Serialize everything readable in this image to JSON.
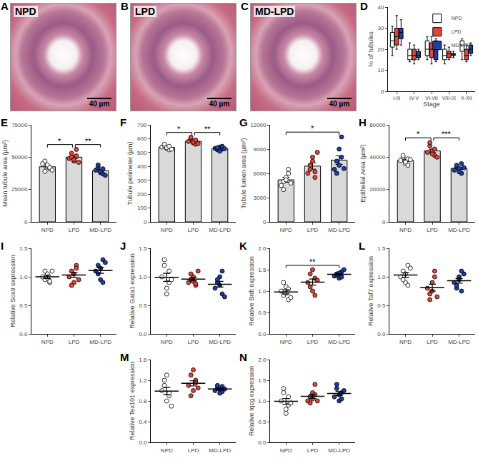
{
  "chart_data": [
    {
      "type": "image",
      "panel": "A",
      "label": "NPD",
      "scale_bar": "40 µm"
    },
    {
      "type": "image",
      "panel": "B",
      "label": "LPD",
      "scale_bar": "40 µm"
    },
    {
      "type": "image",
      "panel": "C",
      "label": "MD-LPD",
      "scale_bar": "40 µm"
    },
    {
      "type": "box",
      "panel": "D",
      "x_label": "Stage",
      "y_label": "% of tubules",
      "categories": [
        "I-III",
        "IV-V",
        "VI-VII",
        "VIII-IX",
        "X-XII"
      ],
      "ylim": [
        0,
        40
      ],
      "yticks": [
        0,
        10,
        20,
        30,
        40
      ],
      "legend": "top right",
      "series": [
        {
          "name": "NPD",
          "color": "#ffffff",
          "min": [
            17,
            14,
            15,
            13,
            15
          ],
          "q1": [
            21,
            15,
            17,
            15,
            19
          ],
          "median": [
            24,
            17,
            20,
            17,
            22
          ],
          "q3": [
            28,
            20,
            24,
            20,
            24
          ],
          "max": [
            31,
            23,
            26,
            22,
            25
          ]
        },
        {
          "name": "LPD",
          "color": "#e0453a",
          "min": [
            20,
            13,
            13,
            15,
            14
          ],
          "q1": [
            22,
            15,
            16,
            16,
            15
          ],
          "median": [
            26,
            17,
            20,
            18,
            17
          ],
          "q3": [
            30,
            20,
            23,
            19,
            20
          ],
          "max": [
            36,
            22,
            26,
            21,
            22
          ]
        },
        {
          "name": "MD-LPD",
          "color": "#1f3f9e",
          "min": [
            22,
            15,
            14,
            16,
            17
          ],
          "q1": [
            25,
            16,
            15,
            17,
            18
          ],
          "median": [
            28,
            17,
            20,
            17,
            20
          ],
          "q3": [
            30,
            19,
            24,
            18,
            22
          ],
          "max": [
            34,
            20,
            25,
            19,
            23
          ]
        }
      ]
    },
    {
      "type": "bar",
      "panel": "E",
      "y_label": "Mean tubule area (µm²)",
      "categories": [
        "NPD",
        "LPD",
        "MD-LPD"
      ],
      "color": "#d9d9d9",
      "colors": [
        "#ffffff",
        "#e0453a",
        "#1f3f9e"
      ],
      "ylim": [
        0,
        75000
      ],
      "yticks": [
        0,
        25000,
        50000,
        75000
      ],
      "values": [
        42600,
        50000,
        39600
      ],
      "error": [
        1000,
        1200,
        900
      ],
      "points": [
        [
          45000,
          47000,
          43000,
          41000,
          39000,
          44000,
          42000,
          40000
        ],
        [
          49000,
          53000,
          47000,
          56000,
          50000,
          48000,
          51000,
          46000
        ],
        [
          40000,
          42000,
          38000,
          37000,
          44000,
          39000,
          41000,
          36000
        ]
      ],
      "significance": [
        {
          "from": "NPD",
          "to": "LPD",
          "label": "*"
        },
        {
          "from": "LPD",
          "to": "MD-LPD",
          "label": "**"
        }
      ]
    },
    {
      "type": "bar",
      "panel": "F",
      "y_label": "Tubule perimeter (µm)",
      "categories": [
        "NPD",
        "LPD",
        "MD-LPD"
      ],
      "color": "#d9d9d9",
      "colors": [
        "#ffffff",
        "#e0453a",
        "#1f3f9e"
      ],
      "ylim": [
        0,
        700
      ],
      "yticks": [
        0,
        100,
        200,
        300,
        400,
        500,
        600,
        700
      ],
      "values": [
        538,
        581,
        529
      ],
      "error": [
        5,
        6,
        4
      ],
      "points": [
        [
          540,
          550,
          530,
          520,
          560,
          535,
          545,
          525
        ],
        [
          580,
          600,
          570,
          560,
          610,
          575,
          590,
          565
        ],
        [
          530,
          520,
          540,
          525,
          535,
          510,
          545,
          528
        ]
      ],
      "significance": [
        {
          "from": "NPD",
          "to": "LPD",
          "label": "*"
        },
        {
          "from": "LPD",
          "to": "MD-LPD",
          "label": "**"
        }
      ]
    },
    {
      "type": "bar",
      "panel": "G",
      "y_label": "Tubule lumen area (µm²)",
      "categories": [
        "NPD",
        "LPD",
        "MD-LPD"
      ],
      "color": "#d9d9d9",
      "colors": [
        "#ffffff",
        "#e0453a",
        "#1f3f9e"
      ],
      "ylim": [
        0,
        12000
      ],
      "yticks": [
        0,
        3000,
        6000,
        9000,
        12000
      ],
      "values": [
        5200,
        6900,
        7640
      ],
      "error": [
        300,
        380,
        540
      ],
      "points": [
        [
          4500,
          5000,
          5500,
          6000,
          4000,
          5200,
          6500,
          4800
        ],
        [
          6000,
          7000,
          8000,
          5500,
          6500,
          7500,
          6200,
          8600
        ],
        [
          6500,
          7500,
          9000,
          10500,
          6000,
          7000,
          8000,
          6600
        ]
      ],
      "significance": [
        {
          "from": "NPD",
          "to": "MD-LPD",
          "label": "*"
        }
      ]
    },
    {
      "type": "bar",
      "panel": "H",
      "y_label": "Epithelial Area (µm²)",
      "categories": [
        "NPD",
        "LPD",
        "MD-LPD"
      ],
      "color": "#d9d9d9",
      "colors": [
        "#ffffff",
        "#e0453a",
        "#1f3f9e"
      ],
      "ylim": [
        0,
        60000
      ],
      "yticks": [
        0,
        20000,
        40000,
        60000
      ],
      "values": [
        38060,
        43900,
        33060
      ],
      "error": [
        700,
        1000,
        700
      ],
      "points": [
        [
          38000,
          40000,
          36000,
          35000,
          41000,
          37000,
          39000,
          38500
        ],
        [
          43000,
          47000,
          44000,
          41000,
          49000,
          42000,
          45000,
          40000
        ],
        [
          32000,
          34000,
          33000,
          30000,
          35000,
          31000,
          36000,
          33500
        ]
      ],
      "significance": [
        {
          "from": "NPD",
          "to": "LPD",
          "label": "*"
        },
        {
          "from": "LPD",
          "to": "MD-LPD",
          "label": "***"
        }
      ]
    },
    {
      "type": "dot",
      "panel": "I",
      "y_label": "Relative Sox9 expression",
      "categories": [
        "NPD",
        "LPD",
        "MD-LPD"
      ],
      "colors": [
        "#ffffff",
        "#e0453a",
        "#1f3f9e"
      ],
      "ylim": [
        0,
        1.5
      ],
      "yticks": [
        {
          "value": 0,
          "label": "0.0"
        },
        {
          "value": 0.5,
          "label": "0.5"
        },
        {
          "value": 1,
          "label": "1.0"
        },
        {
          "value": 1.5,
          "label": "1.5"
        }
      ],
      "values": [
        1.0,
        1.03,
        1.11
      ],
      "error": [
        0.03,
        0.04,
        0.05
      ],
      "points": [
        [
          1.0,
          0.95,
          1.05,
          0.9,
          1.1,
          0.98,
          0.92,
          1.1
        ],
        [
          1.0,
          1.1,
          0.9,
          1.2,
          0.85,
          1.05,
          1.15,
          0.95
        ],
        [
          1.1,
          1.2,
          0.95,
          1.3,
          1.05,
          1.15,
          0.9,
          1.25
        ]
      ],
      "significance": []
    },
    {
      "type": "dot",
      "panel": "J",
      "y_label": "Relative Gata1 expression",
      "categories": [
        "NPD",
        "LPD",
        "MD-LPD"
      ],
      "colors": [
        "#ffffff",
        "#e0453a",
        "#1f3f9e"
      ],
      "ylim": [
        0,
        1.5
      ],
      "yticks": [
        {
          "value": 0,
          "label": "0.0"
        },
        {
          "value": 0.5,
          "label": "0.5"
        },
        {
          "value": 1,
          "label": "1.0"
        },
        {
          "value": 1.5,
          "label": "1.5"
        }
      ],
      "values": [
        0.99,
        0.96,
        0.87
      ],
      "error": [
        0.07,
        0.03,
        0.05
      ],
      "points": [
        [
          1.0,
          1.2,
          0.8,
          0.9,
          1.3,
          0.7,
          1.1,
          0.95
        ],
        [
          0.9,
          0.95,
          1.0,
          0.85,
          1.05,
          0.92,
          0.88,
          1.1
        ],
        [
          0.8,
          0.9,
          1.0,
          0.7,
          0.95,
          0.85,
          1.1,
          0.65
        ]
      ],
      "significance": []
    },
    {
      "type": "dot",
      "panel": "K",
      "y_label": "Relative Brdt expression",
      "categories": [
        "NPD",
        "LPD",
        "MD-LPD"
      ],
      "colors": [
        "#ffffff",
        "#e0453a",
        "#1f3f9e"
      ],
      "ylim": [
        0,
        2
      ],
      "yticks": [
        {
          "value": 0,
          "label": "0.0"
        },
        {
          "value": 0.5,
          "label": "0.5"
        },
        {
          "value": 1,
          "label": "1.0"
        },
        {
          "value": 1.5,
          "label": "1.5"
        },
        {
          "value": 2,
          "label": "2.0"
        }
      ],
      "values": [
        0.98,
        1.21,
        1.39
      ],
      "error": [
        0.05,
        0.07,
        0.02
      ],
      "points": [
        [
          1.0,
          0.9,
          1.1,
          0.8,
          1.2,
          0.95,
          1.05,
          0.85
        ],
        [
          1.2,
          1.4,
          1.0,
          1.3,
          1.1,
          1.5,
          0.9,
          1.25
        ],
        [
          1.35,
          1.4,
          1.3,
          1.45,
          1.38,
          1.42,
          1.33,
          1.5
        ]
      ],
      "significance": [
        {
          "from": "NPD",
          "to": "MD-LPD",
          "label": "**"
        }
      ]
    },
    {
      "type": "dot",
      "panel": "L",
      "y_label": "Relative Taf7 expression",
      "categories": [
        "NPD",
        "LPD",
        "MD-LPD"
      ],
      "colors": [
        "#ffffff",
        "#e0453a",
        "#1f3f9e"
      ],
      "ylim": [
        0,
        1.5
      ],
      "yticks": [
        {
          "value": 0,
          "label": "0.0"
        },
        {
          "value": 0.5,
          "label": "0.5"
        },
        {
          "value": 1,
          "label": "1.0"
        },
        {
          "value": 1.5,
          "label": "1.5"
        }
      ],
      "values": [
        1.03,
        0.81,
        0.93
      ],
      "error": [
        0.04,
        0.06,
        0.04
      ],
      "points": [
        [
          1.0,
          1.1,
          0.9,
          1.2,
          0.95,
          1.05,
          0.85,
          1.15
        ],
        [
          0.8,
          0.7,
          0.9,
          1.1,
          0.6,
          0.75,
          1.0,
          0.65
        ],
        [
          0.9,
          0.8,
          1.0,
          1.1,
          0.85,
          0.95,
          0.75,
          1.05
        ]
      ],
      "significance": []
    },
    {
      "type": "dot",
      "panel": "M",
      "y_label": "Relative Tex101 expression",
      "categories": [
        "NPD",
        "LPD",
        "MD-LPD"
      ],
      "colors": [
        "#ffffff",
        "#e0453a",
        "#1f3f9e"
      ],
      "ylim": [
        0,
        1.6
      ],
      "yticks": [
        {
          "value": 0,
          "label": "0.0"
        },
        {
          "value": 0.4,
          "label": "0.4"
        },
        {
          "value": 0.8,
          "label": "0.8"
        },
        {
          "value": 1.2,
          "label": "1.2"
        },
        {
          "value": 1.6,
          "label": "1.6"
        }
      ],
      "values": [
        0.99,
        1.14,
        1.03
      ],
      "error": [
        0.07,
        0.05,
        0.02
      ],
      "points": [
        [
          1.0,
          1.2,
          0.8,
          0.9,
          1.1,
          1.3,
          0.95,
          0.7
        ],
        [
          1.1,
          1.3,
          1.0,
          1.2,
          0.9,
          1.4,
          1.15,
          1.05
        ],
        [
          1.0,
          1.05,
          1.02,
          0.98,
          1.1,
          0.95,
          1.08,
          1.03
        ]
      ],
      "significance": []
    },
    {
      "type": "dot",
      "panel": "N",
      "y_label": "Relative Iqcg expression",
      "categories": [
        "NPD",
        "LPD",
        "MD-LPD"
      ],
      "colors": [
        "#ffffff",
        "#e0453a",
        "#1f3f9e"
      ],
      "ylim": [
        0,
        2
      ],
      "yticks": [
        {
          "value": 0,
          "label": "0.0"
        },
        {
          "value": 0.5,
          "label": "0.5"
        },
        {
          "value": 1,
          "label": "1.0"
        },
        {
          "value": 1.5,
          "label": "1.5"
        },
        {
          "value": 2,
          "label": "2.0"
        }
      ],
      "values": [
        0.99,
        1.11,
        1.18
      ],
      "error": [
        0.07,
        0.05,
        0.05
      ],
      "points": [
        [
          1.0,
          1.2,
          0.7,
          0.9,
          1.3,
          0.8,
          1.1,
          0.95
        ],
        [
          1.0,
          1.1,
          1.2,
          1.4,
          0.95,
          1.05,
          1.15,
          1.0
        ],
        [
          1.1,
          1.3,
          1.0,
          1.2,
          1.4,
          1.15,
          1.05,
          1.25
        ]
      ],
      "significance": []
    }
  ]
}
